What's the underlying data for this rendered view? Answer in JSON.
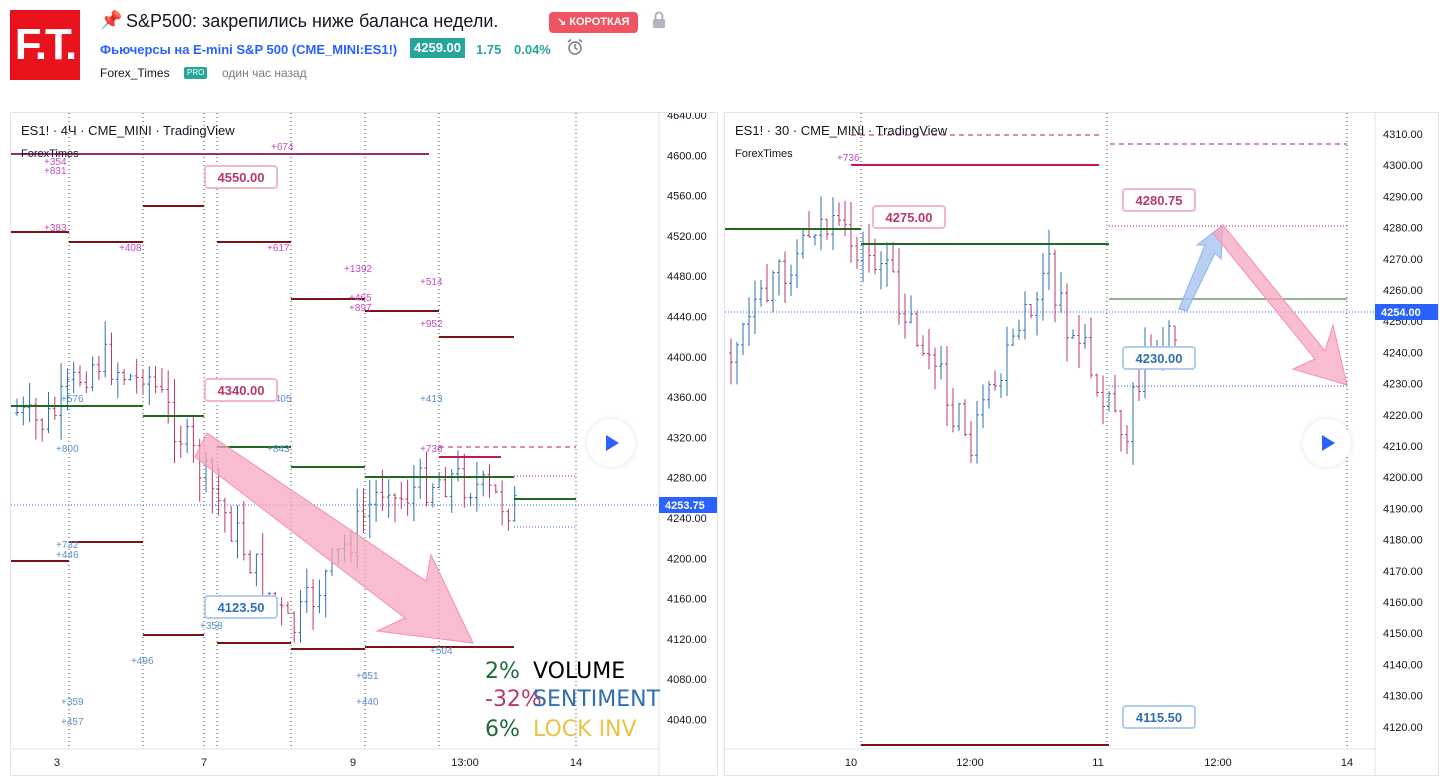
{
  "header": {
    "logo_text": "F.T.",
    "title": "S&P500: закрепились ниже баланса недели.",
    "badge": "↘ КОРОТКАЯ",
    "symbol_link": "Фьючерсы на E-mini S&P 500 (CME_MINI:ES1!)",
    "price": "4259.00",
    "change": "1.75",
    "change_pct": "0.04%",
    "author": "Forex_Times",
    "author_badge": "PRO",
    "time_ago": "один час назад"
  },
  "chart_left": {
    "title": "ES1! · 4Ч · CME_MINI · TradingView",
    "subtitle": "ForexTimes",
    "y_ticks": [
      "4640.00",
      "4600.00",
      "4560.00",
      "4520.00",
      "4480.00",
      "4440.00",
      "4400.00",
      "4360.00",
      "4320.00",
      "4280.00",
      "4240.00",
      "4200.00",
      "4160.00",
      "4120.00",
      "4080.00",
      "4040.00"
    ],
    "x_ticks": [
      "3",
      "7",
      "9",
      "13:00",
      "14"
    ],
    "last_price": "4253.75",
    "callouts": [
      "4550.00",
      "4340.00",
      "4123.50"
    ],
    "level_labels": [
      "+674",
      "+354",
      "+831",
      "+383",
      "+408",
      "+617",
      "+1392",
      "+465",
      "+897",
      "+514",
      "+952",
      "+576",
      "+405",
      "+413",
      "+800",
      "+843",
      "+736",
      "+732",
      "+446",
      "+358",
      "+504",
      "+496",
      "+651",
      "+359",
      "+440",
      "+457"
    ],
    "stats": [
      {
        "value": "2%",
        "label": "VOLUME"
      },
      {
        "value": "-32%",
        "label": "SENTIMENT"
      },
      {
        "value": "6%",
        "label": "LOCK INV"
      }
    ]
  },
  "chart_right": {
    "title": "ES1! · 30 · CME_MINI · TradingView",
    "subtitle": "ForexTimes",
    "y_ticks": [
      "4310.00",
      "4300.00",
      "4290.00",
      "4280.00",
      "4270.00",
      "4260.00",
      "4250.00",
      "4240.00",
      "4230.00",
      "4220.00",
      "4210.00",
      "4200.00",
      "4190.00",
      "4180.00",
      "4170.00",
      "4160.00",
      "4150.00",
      "4140.00",
      "4130.00",
      "4120.00"
    ],
    "x_ticks": [
      "10",
      "12:00",
      "11",
      "12:00",
      "14"
    ],
    "last_price": "4254.00",
    "callouts": [
      "4275.00",
      "4280.75",
      "4230.00",
      "4115.50"
    ],
    "level_labels": [
      "+736"
    ]
  },
  "colors": {
    "accent_red": "#e8131d",
    "short_badge": "#f05361",
    "up": "#26a69a",
    "link": "#2962ff",
    "candle_up": "#2f6fb1",
    "candle_down": "#b8386f"
  }
}
